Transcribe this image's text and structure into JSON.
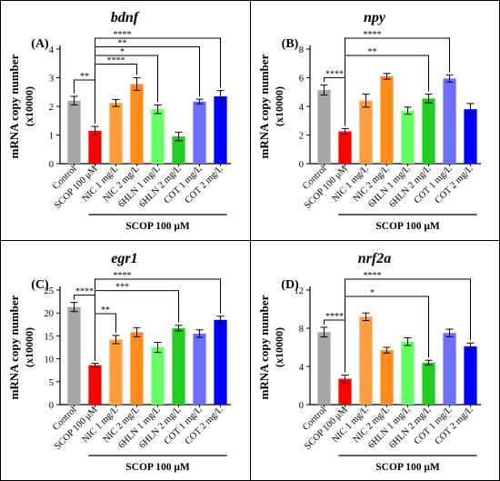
{
  "colors": {
    "bar_fills": [
      "#a6a6a6",
      "#ff0000",
      "#ff9e3d",
      "#ff8c1a",
      "#66ff66",
      "#22cc22",
      "#6f6fff",
      "#0000ff"
    ],
    "axis": "#000000",
    "border": "#000000",
    "error_bar": "#000000"
  },
  "chart_data": [
    {
      "type": "bar",
      "panel_label": "(A)",
      "title": "bdnf",
      "ylabel": "mRNA copy number",
      "ylabel2": "(x10000)",
      "categories": [
        "Control",
        "SCOP 100 μM",
        "NIC 1 mg/L",
        "NIC 2 mg/L",
        "6HLN 1 mg/L",
        "6HLN 2 mg/L",
        "COT 1 mg/L",
        "COT 2 mg/L"
      ],
      "values": [
        2.2,
        1.15,
        2.12,
        2.78,
        1.9,
        0.95,
        2.17,
        2.35
      ],
      "errors": [
        0.15,
        0.15,
        0.12,
        0.22,
        0.15,
        0.15,
        0.08,
        0.2
      ],
      "ylim": [
        0,
        4
      ],
      "yticks": [
        "0",
        "1",
        "2",
        "3",
        "4"
      ],
      "group_label": "SCOP 100 μM",
      "significance": [
        {
          "from": 0,
          "to": 1,
          "label": "**"
        },
        {
          "from": 1,
          "to": 7,
          "label": "****"
        },
        {
          "from": 1,
          "to": 6,
          "label": "**"
        },
        {
          "from": 1,
          "to": 4,
          "label": "*"
        },
        {
          "from": 1,
          "to": 3,
          "label": "****"
        }
      ]
    },
    {
      "type": "bar",
      "panel_label": "(B)",
      "title": "npy",
      "ylabel": "mRNA copy number",
      "ylabel2": "(x10000)",
      "categories": [
        "Control",
        "SCOP 100 μM",
        "NIC 1 mg/L",
        "NIC 2 mg/L",
        "6HLN 1 mg/L",
        "6HLN 2 mg/L",
        "COT 1 mg/L",
        "COT 2 mg/L"
      ],
      "values": [
        5.15,
        2.25,
        4.4,
        6.1,
        3.7,
        4.55,
        5.95,
        3.8
      ],
      "errors": [
        0.35,
        0.2,
        0.45,
        0.2,
        0.25,
        0.3,
        0.25,
        0.4
      ],
      "ylim": [
        0,
        8
      ],
      "yticks": [
        "0",
        "2",
        "4",
        "6",
        "8"
      ],
      "group_label": "SCOP 100 μM",
      "significance": [
        {
          "from": 0,
          "to": 1,
          "label": "****"
        },
        {
          "from": 1,
          "to": 6,
          "label": "****"
        },
        {
          "from": 1,
          "to": 5,
          "label": "**"
        }
      ]
    },
    {
      "type": "bar",
      "panel_label": "(C)",
      "title": "egr1",
      "ylabel": "mRNA copy number",
      "ylabel2": "(x10000)",
      "categories": [
        "Control",
        "SCOP 100 μM",
        "NIC 1 mg/L",
        "NIC 2 mg/L",
        "6HLN 1 mg/L",
        "6HLN 2 mg/L",
        "COT 1 mg/L",
        "COT 2 mg/L"
      ],
      "values": [
        21.3,
        8.6,
        14.2,
        15.8,
        12.5,
        16.7,
        15.5,
        18.5
      ],
      "errors": [
        1.0,
        0.4,
        0.9,
        1.0,
        1.1,
        0.6,
        0.8,
        0.8
      ],
      "ylim": [
        0,
        25
      ],
      "yticks": [
        "0",
        "5",
        "10",
        "15",
        "20",
        "25"
      ],
      "group_label": "SCOP 100 μM",
      "significance": [
        {
          "from": 0,
          "to": 1,
          "label": "****"
        },
        {
          "from": 1,
          "to": 7,
          "label": "****"
        },
        {
          "from": 1,
          "to": 5,
          "label": "***"
        },
        {
          "from": 1,
          "to": 2,
          "label": "**"
        }
      ]
    },
    {
      "type": "bar",
      "panel_label": "(D)",
      "title": "nrf2a",
      "ylabel": "mRNA copy number",
      "ylabel2": "(x10000)",
      "categories": [
        "Control",
        "SCOP 100 μM",
        "NIC 1 mg/L",
        "NIC 2 mg/L",
        "6HLN 1 mg/L",
        "6HLN 2 mg/L",
        "COT 1 mg/L",
        "COT 2 mg/L"
      ],
      "values": [
        7.6,
        2.7,
        9.2,
        5.7,
        6.6,
        4.4,
        7.5,
        6.1
      ],
      "errors": [
        0.5,
        0.4,
        0.4,
        0.3,
        0.4,
        0.25,
        0.4,
        0.35
      ],
      "ylim": [
        0,
        12
      ],
      "yticks": [
        "0",
        "4",
        "8",
        "12"
      ],
      "group_label": "SCOP 100 μM",
      "significance": [
        {
          "from": 0,
          "to": 1,
          "label": "****"
        },
        {
          "from": 1,
          "to": 5,
          "label": "*"
        },
        {
          "from": 1,
          "to": 7,
          "label": "****"
        }
      ]
    }
  ]
}
